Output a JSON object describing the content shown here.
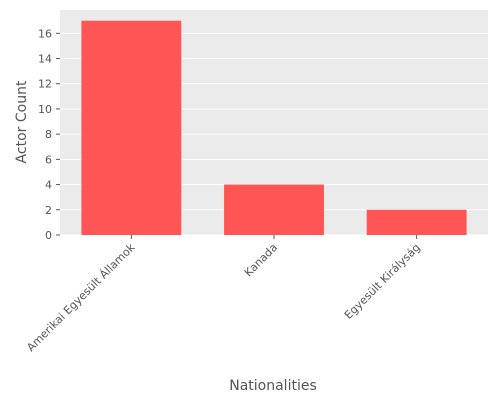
{
  "chart_data": {
    "type": "bar",
    "categories": [
      "Amerikai Egyesült Államok",
      "Kanada",
      "Egyesült Királyság"
    ],
    "values": [
      17,
      4,
      2
    ],
    "xlabel": "Nationalities",
    "ylabel": "Actor Count",
    "ylim": [
      0,
      17.85
    ],
    "yticks": [
      0,
      2,
      4,
      6,
      8,
      10,
      12,
      14,
      16
    ],
    "grid": true,
    "legend": "none",
    "colors": {
      "bar": "#ff5555",
      "plot_background": "#ebebeb",
      "grid": "#ffffff",
      "text": "#555555"
    }
  }
}
